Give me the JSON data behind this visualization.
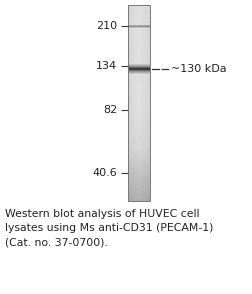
{
  "fig_width": 2.52,
  "fig_height": 2.94,
  "dpi": 100,
  "background_color": "#ffffff",
  "mw_markers": [
    {
      "label": "210",
      "log_val": 2.3222
    },
    {
      "label": "134",
      "log_val": 2.1271
    },
    {
      "label": "82",
      "log_val": 1.9138
    },
    {
      "label": "40.6",
      "log_val": 1.6085
    }
  ],
  "log_min": 1.5,
  "log_max": 2.4,
  "band_log": 2.114,
  "band_label": "~130 kDa",
  "caption_lines": [
    "Western blot analysis of HUVEC cell",
    "lysates using Ms anti-CD31 (PECAM-1)",
    "(Cat. no. 37-0700)."
  ],
  "caption_fontsize": 7.8,
  "marker_fontsize": 8.0,
  "band_label_fontsize": 8.0,
  "gel_border_color": "#777777",
  "gel_border_lw": 0.7
}
